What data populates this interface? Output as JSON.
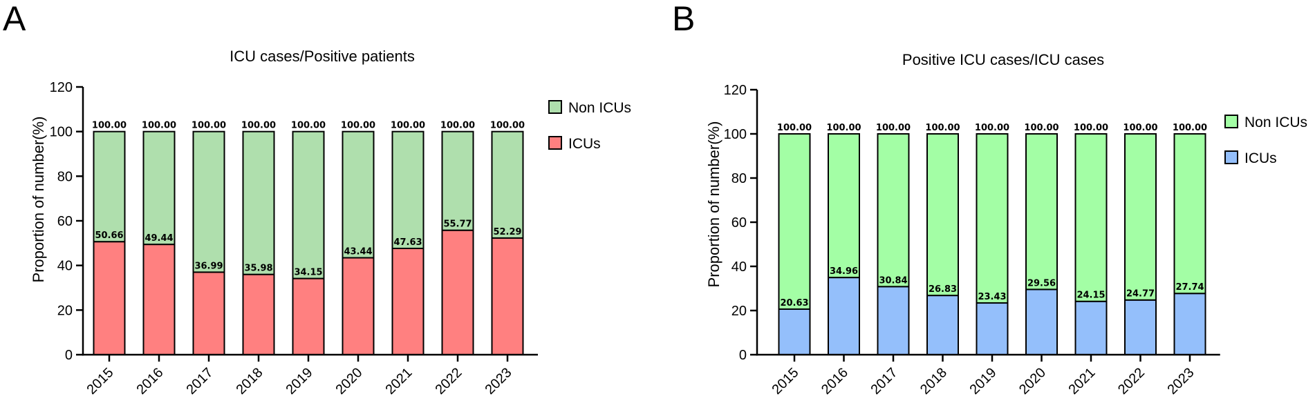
{
  "chart_data": [
    {
      "type": "bar",
      "stacked": true,
      "panel_label": "A",
      "title": "ICU cases/Positive patients",
      "xlabel": "",
      "ylabel": "Proportion of number(%)",
      "ylim": [
        0,
        120
      ],
      "yticks": [
        0,
        20,
        40,
        60,
        80,
        100,
        120
      ],
      "categories": [
        "2015",
        "2016",
        "2017",
        "2018",
        "2019",
        "2020",
        "2021",
        "2022",
        "2023"
      ],
      "series": [
        {
          "name": "ICUs",
          "color": "#ff8080",
          "values": [
            50.66,
            49.44,
            36.99,
            35.98,
            34.15,
            43.44,
            47.63,
            55.77,
            52.29
          ]
        },
        {
          "name": "Non ICUs",
          "color": "#afdfad",
          "values": [
            49.34,
            50.56,
            63.01,
            64.02,
            65.85,
            56.56,
            52.37,
            44.23,
            47.71
          ]
        }
      ],
      "lower_labels": [
        "50.66",
        "49.44",
        "36.99",
        "35.98",
        "34.15",
        "43.44",
        "47.63",
        "55.77",
        "52.29"
      ],
      "top_labels": [
        "100.00",
        "100.00",
        "100.00",
        "100.00",
        "100.00",
        "100.00",
        "100.00",
        "100.00",
        "100.00"
      ],
      "legend": [
        {
          "label": "Non ICUs",
          "color": "#afdfad"
        },
        {
          "label": "ICUs",
          "color": "#ff8080"
        }
      ]
    },
    {
      "type": "bar",
      "stacked": true,
      "panel_label": "B",
      "title": "Positive ICU cases/ICU cases",
      "xlabel": "",
      "ylabel": "Proportion of number(%)",
      "ylim": [
        0,
        120
      ],
      "yticks": [
        0,
        20,
        40,
        60,
        80,
        100,
        120
      ],
      "categories": [
        "2015",
        "2016",
        "2017",
        "2018",
        "2019",
        "2020",
        "2021",
        "2022",
        "2023"
      ],
      "series": [
        {
          "name": "ICUs",
          "color": "#94bffb",
          "values": [
            20.63,
            34.96,
            30.84,
            26.83,
            23.43,
            29.56,
            24.15,
            24.77,
            27.74
          ]
        },
        {
          "name": "Non ICUs",
          "color": "#a3fea5",
          "values": [
            79.37,
            65.04,
            69.16,
            73.17,
            76.57,
            70.44,
            75.85,
            75.23,
            72.26
          ]
        }
      ],
      "lower_labels": [
        "20.63",
        "34.96",
        "30.84",
        "26.83",
        "23.43",
        "29.56",
        "24.15",
        "24.77",
        "27.74"
      ],
      "top_labels": [
        "100.00",
        "100.00",
        "100.00",
        "100.00",
        "100.00",
        "100.00",
        "100.00",
        "100.00",
        "100.00"
      ],
      "legend": [
        {
          "label": "Non ICUs",
          "color": "#a3fea5"
        },
        {
          "label": "ICUs",
          "color": "#94bffb"
        }
      ]
    }
  ]
}
